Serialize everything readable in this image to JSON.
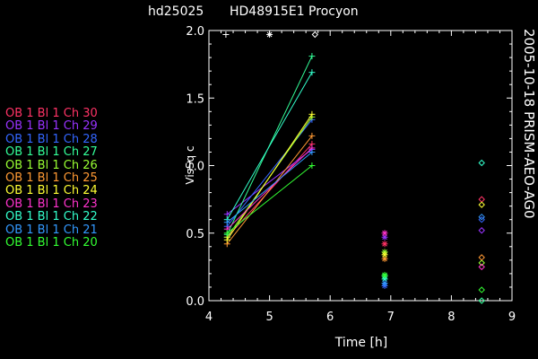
{
  "chart_data": {
    "type": "line",
    "title_left": "hd25025",
    "title_right": "HD48915E1 Procyon",
    "side_label": "2005-10-18 PRISM-AEO-AG0",
    "xlabel": "Time [h]",
    "ylabel": "VisSq c",
    "xlim": [
      4,
      9
    ],
    "ylim": [
      0,
      2
    ],
    "x_ticks": [
      "4",
      "5",
      "6",
      "7",
      "8",
      "9"
    ],
    "y_ticks": [
      "0.0",
      "0.5",
      "1.0",
      "1.5",
      "2.0"
    ],
    "legend_placement": "left",
    "series": [
      {
        "name": "OB 1 Bl 1 Ch 30",
        "color": "#ff3366",
        "points": [
          [
            4.3,
            0.47
          ],
          [
            5.7,
            1.16
          ]
        ],
        "extra": [
          [
            6.9,
            0.42
          ],
          [
            8.5,
            0.75
          ]
        ]
      },
      {
        "name": "OB 1 Bl 1 Ch 29",
        "color": "#9933ff",
        "points": [
          [
            4.3,
            0.64
          ],
          [
            5.7,
            1.12
          ]
        ],
        "extra": [
          [
            6.9,
            0.47
          ],
          [
            8.5,
            0.52
          ]
        ]
      },
      {
        "name": "OB 1 Bl 1 Ch 28",
        "color": "#3366ff",
        "points": [
          [
            4.3,
            0.55
          ],
          [
            5.7,
            1.34
          ]
        ],
        "extra": [
          [
            6.9,
            0.11
          ],
          [
            8.5,
            0.6
          ]
        ]
      },
      {
        "name": "OB 1 Bl 1 Ch 27",
        "color": "#33ff99",
        "points": [
          [
            4.3,
            0.49
          ],
          [
            5.7,
            1.81
          ]
        ],
        "extra": [
          [
            6.9,
            0.18
          ],
          [
            8.5,
            0.0
          ]
        ]
      },
      {
        "name": "OB 1 Bl 1 Ch 26",
        "color": "#99ff33",
        "points": [
          [
            4.3,
            0.47
          ],
          [
            5.7,
            1.36
          ]
        ],
        "extra": [
          [
            6.9,
            0.36
          ],
          [
            8.5,
            0.28
          ]
        ]
      },
      {
        "name": "OB 1 Bl 1 Ch 25",
        "color": "#ff9933",
        "points": [
          [
            4.3,
            0.42
          ],
          [
            5.7,
            1.22
          ]
        ],
        "extra": [
          [
            6.9,
            0.31
          ],
          [
            8.5,
            0.32
          ]
        ]
      },
      {
        "name": "OB 1 Bl 1 Ch 24",
        "color": "#ffff33",
        "points": [
          [
            4.3,
            0.45
          ],
          [
            5.7,
            1.38
          ]
        ],
        "extra": [
          [
            6.9,
            0.34
          ],
          [
            8.5,
            0.71
          ]
        ]
      },
      {
        "name": "OB 1 Bl 1 Ch 23",
        "color": "#ff33cc",
        "points": [
          [
            4.3,
            0.53
          ],
          [
            5.7,
            1.13
          ]
        ],
        "extra": [
          [
            6.9,
            0.5
          ],
          [
            8.5,
            0.25
          ]
        ]
      },
      {
        "name": "OB 1 Bl 1 Ch 22",
        "color": "#33ffcc",
        "points": [
          [
            4.3,
            0.6
          ],
          [
            5.7,
            1.69
          ]
        ],
        "extra": [
          [
            6.9,
            0.16
          ],
          [
            8.5,
            1.02
          ]
        ]
      },
      {
        "name": "OB 1 Bl 1 Ch 21",
        "color": "#3399ff",
        "points": [
          [
            4.3,
            0.58
          ],
          [
            5.7,
            1.1
          ]
        ],
        "extra": [
          [
            6.9,
            0.13
          ],
          [
            8.5,
            0.62
          ]
        ]
      },
      {
        "name": "OB 1 Bl 1 Ch 20",
        "color": "#33ff33",
        "points": [
          [
            4.3,
            0.5
          ],
          [
            5.7,
            1.0
          ]
        ],
        "extra": [
          [
            6.9,
            0.19
          ],
          [
            8.5,
            0.08
          ]
        ]
      }
    ],
    "top_markers": [
      {
        "x": 4.28,
        "y": 1.97,
        "symbol": "+",
        "color": "#ffffff"
      },
      {
        "x": 5.0,
        "y": 1.97,
        "symbol": "*",
        "color": "#ffffff"
      },
      {
        "x": 5.75,
        "y": 1.97,
        "symbol": "◇",
        "color": "#ffffff"
      }
    ]
  }
}
